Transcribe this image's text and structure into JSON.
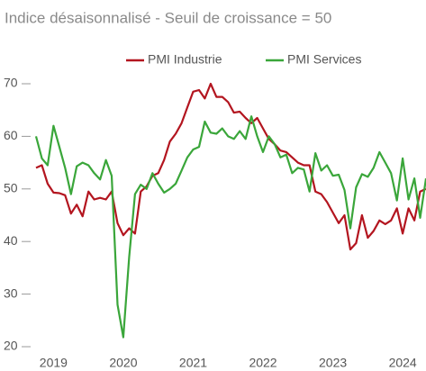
{
  "chart_data": {
    "type": "line",
    "title": "Indice désaisonnalisé - Seuil de croissance = 50",
    "categories": [
      null,
      null,
      null,
      "2019",
      null,
      null,
      null,
      null,
      null,
      null,
      null,
      null,
      null,
      null,
      null,
      "2020",
      null,
      null,
      null,
      null,
      null,
      null,
      null,
      null,
      null,
      null,
      null,
      "2021",
      null,
      null,
      null,
      null,
      null,
      null,
      null,
      null,
      null,
      null,
      null,
      "2022",
      null,
      null,
      null,
      null,
      null,
      null,
      null,
      null,
      null,
      null,
      null,
      "2023",
      null,
      null,
      null,
      null,
      null,
      null,
      null,
      null,
      null,
      null,
      null,
      "2024",
      null,
      null,
      null,
      null
    ],
    "series": [
      {
        "name": "PMI Industrie",
        "color": "#b3151f",
        "values": [
          54,
          54.5,
          51,
          49.3,
          49.2,
          48.8,
          45.3,
          47,
          44.8,
          49.5,
          48,
          48.3,
          48,
          49.5,
          43.5,
          41.2,
          42.5,
          41.5,
          49.5,
          50.5,
          52.5,
          53,
          55.5,
          59,
          60.5,
          62.5,
          65.5,
          68.5,
          68.8,
          67.2,
          70,
          67.5,
          67.5,
          66.5,
          64.5,
          64.7,
          63.5,
          62.5,
          63.5,
          61.5,
          59.5,
          58.5,
          57.3,
          57,
          56,
          55,
          54.5,
          54.5,
          49.5,
          49,
          47.5,
          45.5,
          43.5,
          45,
          38.5,
          39.7,
          45,
          40.7,
          42,
          44,
          43.3,
          44,
          46.3,
          41.5,
          46.3,
          44,
          49.5,
          50
        ]
      },
      {
        "name": "PMI Services",
        "color": "#3aa63a",
        "values": [
          60,
          55.8,
          54.5,
          62,
          58,
          54,
          49,
          54.3,
          55,
          54.5,
          53,
          51.8,
          55.5,
          52.5,
          28,
          21.8,
          37,
          49,
          50.8,
          50,
          53,
          51,
          49.3,
          50,
          51,
          53.5,
          56,
          57.5,
          58,
          62.8,
          60.7,
          60.5,
          61.5,
          60,
          59.5,
          61,
          59.5,
          63.8,
          60,
          57,
          60,
          58.5,
          56,
          56.5,
          53,
          54,
          53.7,
          49.5,
          56.8,
          53.5,
          54.5,
          52.5,
          52.7,
          49.8,
          42.5,
          50.3,
          52.8,
          52.3,
          54,
          57,
          55,
          53,
          47.8,
          55.8,
          48,
          52,
          44.5,
          52
        ]
      }
    ],
    "ylim": [
      20,
      70
    ],
    "yticks": [
      20,
      30,
      40,
      50,
      60,
      70
    ]
  }
}
